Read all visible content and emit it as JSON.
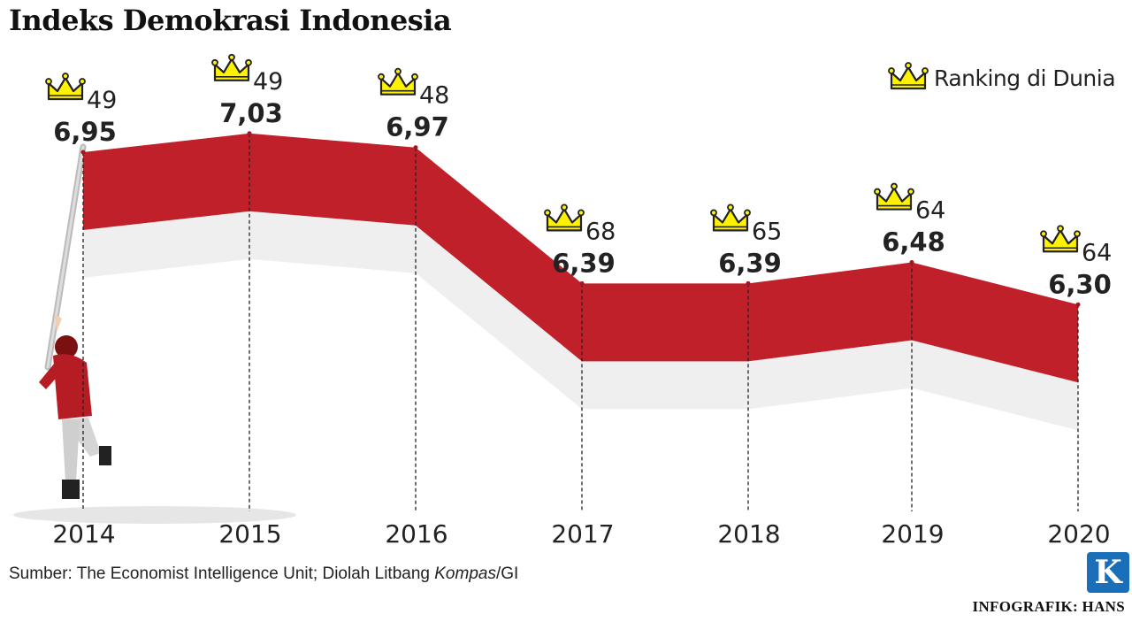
{
  "title": "Indeks Demokrasi Indonesia",
  "legend": {
    "label": "Ranking di Dunia",
    "icon": "crown-icon"
  },
  "source": {
    "prefix": "Sumber: The Economist Intelligence Unit; Diolah Litbang ",
    "publication": "Kompas",
    "suffix": "/GI"
  },
  "credit": "INFOGRAFIK: HANS",
  "logo_letter": "K",
  "colors": {
    "band": "#c0202a",
    "band_dark": "#9e1a22",
    "shadow": "#eeefee",
    "crown": "#fff200",
    "crown_stroke": "#222222"
  },
  "chart_data": {
    "type": "line",
    "title": "Indeks Demokrasi Indonesia",
    "xlabel": "",
    "ylabel": "",
    "years": [
      "2014",
      "2015",
      "2016",
      "2017",
      "2018",
      "2019",
      "2020"
    ],
    "scores": [
      6.95,
      7.03,
      6.97,
      6.39,
      6.39,
      6.48,
      6.3
    ],
    "score_labels": [
      "6,95",
      "7,03",
      "6,97",
      "6,39",
      "6,39",
      "6,48",
      "6,30"
    ],
    "rankings": [
      49,
      49,
      48,
      68,
      65,
      64,
      64
    ],
    "series": [
      {
        "name": "Indeks Demokrasi",
        "values": [
          6.95,
          7.03,
          6.97,
          6.39,
          6.39,
          6.48,
          6.3
        ]
      },
      {
        "name": "Ranking di Dunia",
        "values": [
          49,
          49,
          48,
          68,
          65,
          64,
          64
        ]
      }
    ],
    "grid": false,
    "legend_position": "top-right"
  }
}
